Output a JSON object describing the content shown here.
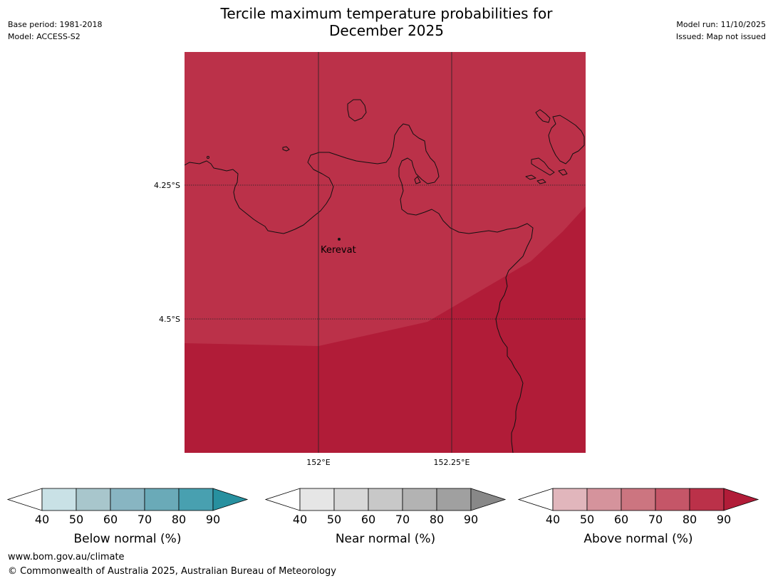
{
  "header": {
    "title_line1": "Tercile maximum temperature probabilities for",
    "title_line2": "December 2025",
    "base_period": "Base period: 1981-2018",
    "model": "Model: ACCESS-S2",
    "model_run": "Model run: 11/10/2025",
    "issued": "Issued: Map not issued"
  },
  "map": {
    "lat_labels": [
      "4.25°S",
      "4.5°S"
    ],
    "lon_labels": [
      "152°E",
      "152.25°E"
    ],
    "town": "Kerevat",
    "colors": {
      "above_80_90": "#bb3149",
      "above_90_plus": "#b11c38",
      "coastline": "#111111"
    }
  },
  "legends": [
    {
      "id": "below",
      "title": "Below normal (%)",
      "ticks": [
        "40",
        "50",
        "60",
        "70",
        "80",
        "90"
      ],
      "colors": [
        "#ffffff",
        "#c9e1e6",
        "#a8c6cc",
        "#88b5c2",
        "#6aaab8",
        "#48a0b0",
        "#27909f"
      ]
    },
    {
      "id": "near",
      "title": "Near normal (%)",
      "ticks": [
        "40",
        "50",
        "60",
        "70",
        "80",
        "90"
      ],
      "colors": [
        "#ffffff",
        "#e6e6e6",
        "#d8d8d8",
        "#c8c8c8",
        "#b3b3b3",
        "#a0a0a0",
        "#888888"
      ]
    },
    {
      "id": "above",
      "title": "Above normal (%)",
      "ticks": [
        "40",
        "50",
        "60",
        "70",
        "80",
        "90"
      ],
      "colors": [
        "#ffffff",
        "#e1b6bc",
        "#d5939c",
        "#cc7580",
        "#c55668",
        "#bb3149",
        "#b11c38"
      ]
    }
  ],
  "footer": {
    "url": "www.bom.gov.au/climate",
    "copyright": "© Commonwealth of Australia 2025, Australian Bureau of Meteorology"
  }
}
